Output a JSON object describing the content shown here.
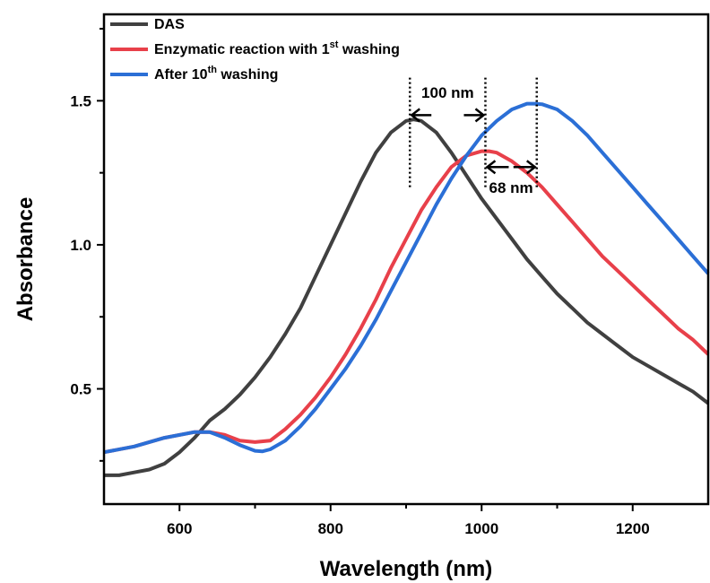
{
  "chart_data": {
    "type": "line",
    "xlabel": "Wavelength (nm)",
    "ylabel": "Absorbance",
    "xlim": [
      500,
      1300
    ],
    "ylim": [
      0.1,
      1.8
    ],
    "xticks": [
      600,
      800,
      1000,
      1200
    ],
    "xtick_labels": [
      "600",
      "800",
      "1000",
      "1200"
    ],
    "yticks": [
      0.5,
      1.0,
      1.5
    ],
    "ytick_labels": [
      "0.5",
      "1.0",
      "1.5"
    ],
    "grid": false,
    "legend_position": "top-left",
    "series": [
      {
        "name": "DAS",
        "color": "#404040",
        "x": [
          500,
          520,
          540,
          560,
          580,
          600,
          620,
          640,
          660,
          680,
          700,
          720,
          740,
          760,
          780,
          800,
          820,
          840,
          860,
          880,
          900,
          910,
          920,
          940,
          960,
          980,
          1000,
          1020,
          1040,
          1060,
          1080,
          1100,
          1120,
          1140,
          1160,
          1180,
          1200,
          1220,
          1240,
          1260,
          1280,
          1300
        ],
        "y": [
          0.2,
          0.2,
          0.21,
          0.22,
          0.24,
          0.28,
          0.33,
          0.39,
          0.43,
          0.48,
          0.54,
          0.61,
          0.69,
          0.78,
          0.89,
          1.0,
          1.11,
          1.22,
          1.32,
          1.39,
          1.43,
          1.435,
          1.43,
          1.39,
          1.32,
          1.24,
          1.16,
          1.09,
          1.02,
          0.95,
          0.89,
          0.83,
          0.78,
          0.73,
          0.69,
          0.65,
          0.61,
          0.58,
          0.55,
          0.52,
          0.49,
          0.45
        ]
      },
      {
        "name": "Enzymatic reaction with 1st washing",
        "color": "#e8404a",
        "x": [
          500,
          540,
          580,
          620,
          640,
          660,
          680,
          700,
          720,
          740,
          760,
          780,
          800,
          820,
          840,
          860,
          880,
          900,
          920,
          940,
          960,
          980,
          1000,
          1010,
          1020,
          1040,
          1060,
          1080,
          1100,
          1120,
          1140,
          1160,
          1180,
          1200,
          1220,
          1240,
          1260,
          1280,
          1300
        ],
        "y": [
          0.28,
          0.3,
          0.33,
          0.35,
          0.35,
          0.34,
          0.32,
          0.315,
          0.32,
          0.36,
          0.41,
          0.47,
          0.54,
          0.62,
          0.71,
          0.81,
          0.92,
          1.02,
          1.12,
          1.2,
          1.27,
          1.31,
          1.325,
          1.325,
          1.32,
          1.29,
          1.25,
          1.2,
          1.14,
          1.08,
          1.02,
          0.96,
          0.91,
          0.86,
          0.81,
          0.76,
          0.71,
          0.67,
          0.62
        ]
      },
      {
        "name": "After 10th washing",
        "color": "#2b6fd6",
        "x": [
          500,
          540,
          580,
          620,
          640,
          660,
          680,
          700,
          710,
          720,
          740,
          760,
          780,
          800,
          820,
          840,
          860,
          880,
          900,
          920,
          940,
          960,
          980,
          1000,
          1020,
          1040,
          1060,
          1070,
          1080,
          1100,
          1120,
          1140,
          1160,
          1180,
          1200,
          1220,
          1240,
          1260,
          1280,
          1300
        ],
        "y": [
          0.28,
          0.3,
          0.33,
          0.35,
          0.35,
          0.33,
          0.305,
          0.285,
          0.283,
          0.29,
          0.32,
          0.37,
          0.43,
          0.5,
          0.57,
          0.65,
          0.74,
          0.84,
          0.94,
          1.04,
          1.14,
          1.23,
          1.31,
          1.38,
          1.43,
          1.47,
          1.49,
          1.49,
          1.488,
          1.47,
          1.43,
          1.38,
          1.32,
          1.26,
          1.2,
          1.14,
          1.08,
          1.02,
          0.96,
          0.9
        ]
      }
    ],
    "legend": [
      {
        "text": "DAS",
        "base": "DAS",
        "sup": "",
        "tail": ""
      },
      {
        "text": "Enzymatic reaction with 1st washing",
        "base": "Enzymatic reaction with 1",
        "sup": "st",
        "tail": " washing"
      },
      {
        "text": "After 10th washing",
        "base": "After 10",
        "sup": "th",
        "tail": " washing"
      }
    ],
    "annotations": [
      {
        "label": "100 nm",
        "from_x": 905,
        "to_x": 1005,
        "arrow_y": 1.45
      },
      {
        "label": "68 nm",
        "from_x": 1005,
        "to_x": 1073,
        "arrow_y": 1.27
      }
    ],
    "peak_markers": [
      {
        "x": 905,
        "y_from": 1.58,
        "y_to": 1.2
      },
      {
        "x": 1005,
        "y_from": 1.58,
        "y_to": 1.2
      },
      {
        "x": 1073,
        "y_from": 1.58,
        "y_to": 1.2
      }
    ]
  }
}
